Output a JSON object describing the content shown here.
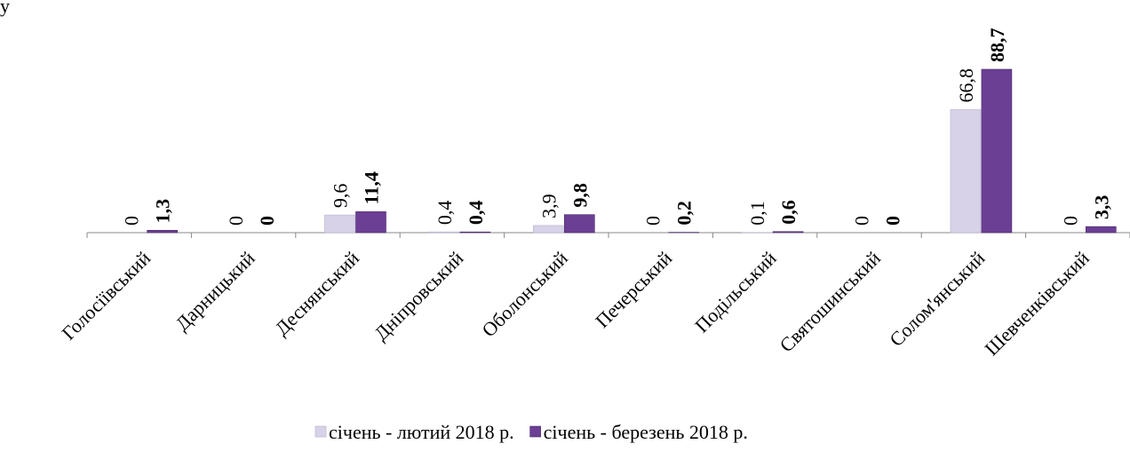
{
  "caption_fragment": "у",
  "chart_data": {
    "type": "bar",
    "categories": [
      "Голосіївський",
      "Дарницький",
      "Деснянський",
      "Дніпровський",
      "Оболонський",
      "Печерський",
      "Подільський",
      "Святошинський",
      "Солом'янський",
      "Шевченківський"
    ],
    "series": [
      {
        "name": "січень - лютий 2018 р.",
        "color": "#d8d2e8",
        "values": [
          0,
          0,
          9.6,
          0.4,
          3.9,
          0,
          0.1,
          0,
          66.8,
          0
        ],
        "value_labels": [
          "0",
          "0",
          "9,6",
          "0,4",
          "3,9",
          "0",
          "0,1",
          "0",
          "66,8",
          "0"
        ]
      },
      {
        "name": "січень - березень 2018 р.",
        "color": "#6b3f94",
        "values": [
          1.3,
          0,
          11.4,
          0.4,
          9.8,
          0.2,
          0.6,
          0,
          88.7,
          3.3
        ],
        "value_labels": [
          "1,3",
          "0",
          "11,4",
          "0,4",
          "9,8",
          "0,2",
          "0,6",
          "0",
          "88,7",
          "3,3"
        ]
      }
    ],
    "legend": "bottom"
  }
}
